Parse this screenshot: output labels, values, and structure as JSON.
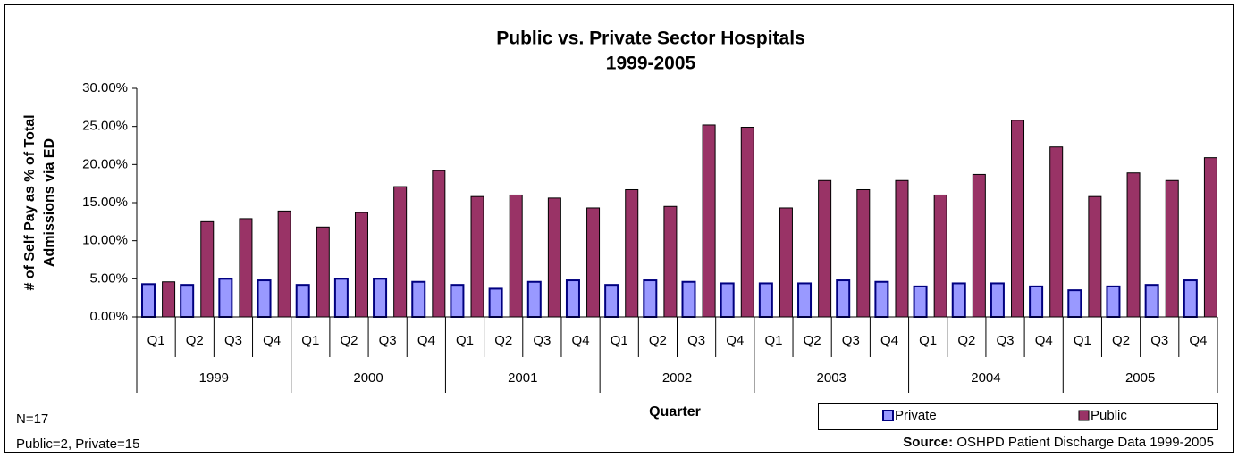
{
  "chart_data": {
    "type": "bar",
    "title": [
      "Public vs. Private Sector Hospitals",
      "1999-2005"
    ],
    "y_label": [
      "# of Self Pay as % of Total",
      "Admissions via ED"
    ],
    "x_label": "Quarter",
    "categories": [
      "Q1",
      "Q2",
      "Q3",
      "Q4",
      "Q1",
      "Q2",
      "Q3",
      "Q4",
      "Q1",
      "Q2",
      "Q3",
      "Q4",
      "Q1",
      "Q2",
      "Q3",
      "Q4",
      "Q1",
      "Q2",
      "Q3",
      "Q4",
      "Q1",
      "Q2",
      "Q3",
      "Q4",
      "Q1",
      "Q2",
      "Q3",
      "Q4"
    ],
    "category_groups": [
      "1999",
      "2000",
      "2001",
      "2002",
      "2003",
      "2004",
      "2005"
    ],
    "series": [
      {
        "name": "Private",
        "color": "#9999ff",
        "edge": "#000080",
        "values": [
          4.3,
          4.2,
          5.0,
          4.8,
          4.2,
          5.0,
          5.0,
          4.6,
          4.2,
          3.7,
          4.6,
          4.8,
          4.2,
          4.8,
          4.6,
          4.4,
          4.4,
          4.4,
          4.8,
          4.6,
          4.0,
          4.4,
          4.4,
          4.0,
          3.5,
          4.0,
          4.2,
          4.8
        ]
      },
      {
        "name": "Public",
        "color": "#993366",
        "edge": "#000000",
        "values": [
          4.6,
          12.5,
          12.9,
          13.9,
          11.8,
          13.7,
          17.1,
          19.2,
          15.8,
          16.0,
          15.6,
          14.3,
          16.7,
          14.5,
          25.2,
          24.9,
          14.3,
          17.9,
          16.7,
          17.9,
          16.0,
          18.7,
          25.8,
          22.3,
          15.8,
          18.9,
          17.9,
          20.9
        ]
      }
    ],
    "ylim": [
      0,
      30
    ],
    "yticks": [
      {
        "value": 0,
        "label": "0.00%"
      },
      {
        "value": 5,
        "label": "5.00%"
      },
      {
        "value": 10,
        "label": "10.00%"
      },
      {
        "value": 15,
        "label": "15.00%"
      },
      {
        "value": 20,
        "label": "20.00%"
      },
      {
        "value": 25,
        "label": "25.00%"
      },
      {
        "value": 30,
        "label": "30.00%"
      }
    ],
    "grid": false,
    "notes": [
      "N=17",
      "Public=2, Private=15"
    ],
    "source": {
      "label": "Source:",
      "text": "OSHPD Patient Discharge Data 1999-2005"
    }
  }
}
